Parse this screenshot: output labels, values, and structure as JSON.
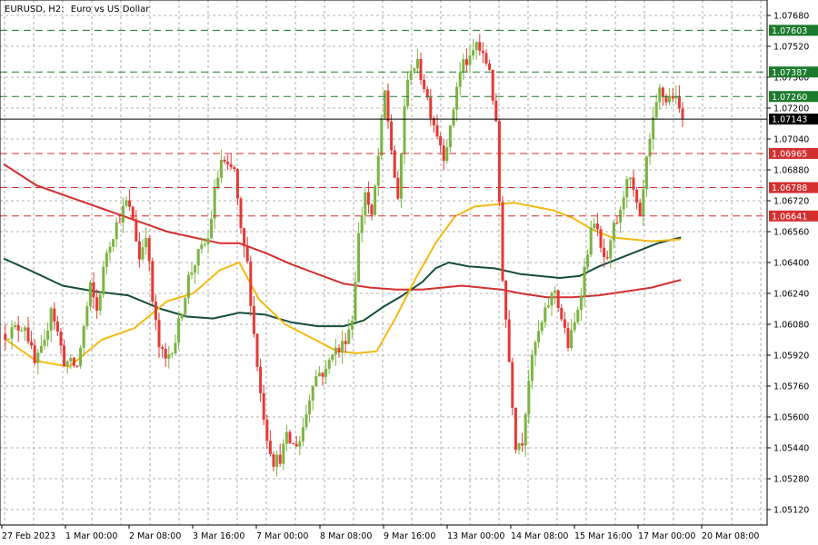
{
  "header": {
    "symbol": "EURUSD, H2:",
    "description": "Euro vs US Dollar"
  },
  "colors": {
    "bull": "#7cb342",
    "bear": "#e53935",
    "ma_fast": "#f5b914",
    "ma_mid": "#134e3a",
    "ma_slow": "#d32f2f",
    "level_green": "#1b7a2b",
    "level_red": "#d32f2f",
    "current": "#000000"
  },
  "chart_data": {
    "type": "candlestick",
    "ylim": [
      1.0504,
      1.0776
    ],
    "y_ticks": [
      "1.07680",
      "1.07520",
      "1.07360",
      "1.07200",
      "1.07040",
      "1.06880",
      "1.06720",
      "1.06560",
      "1.06400",
      "1.06240",
      "1.06080",
      "1.05920",
      "1.05760",
      "1.05600",
      "1.05440",
      "1.05280",
      "1.05120"
    ],
    "x_ticks": [
      "27 Feb 2023",
      "1 Mar 00:00",
      "2 Mar 08:00",
      "3 Mar 16:00",
      "7 Mar 00:00",
      "8 Mar 08:00",
      "9 Mar 16:00",
      "13 Mar 00:00",
      "14 Mar 08:00",
      "15 Mar 16:00",
      "17 Mar 00:00",
      "20 Mar 08:00"
    ],
    "current_price": {
      "label": "1.07143",
      "value": 1.07143
    },
    "levels": [
      {
        "label": "1.07603",
        "value": 1.07603,
        "kind": "resistance"
      },
      {
        "label": "1.07387",
        "value": 1.07387,
        "kind": "resistance"
      },
      {
        "label": "1.07260",
        "value": 1.0726,
        "kind": "resistance"
      },
      {
        "label": "1.06965",
        "value": 1.06965,
        "kind": "support"
      },
      {
        "label": "1.06788",
        "value": 1.06788,
        "kind": "support"
      },
      {
        "label": "1.06641",
        "value": 1.06641,
        "kind": "support"
      }
    ],
    "path": [
      [
        0,
        1.0603
      ],
      [
        6,
        1.0608
      ],
      [
        9,
        1.0587
      ],
      [
        12,
        1.0597
      ],
      [
        14,
        1.0618
      ],
      [
        18,
        1.0589
      ],
      [
        22,
        1.0586
      ],
      [
        26,
        1.0627
      ],
      [
        28,
        1.0615
      ],
      [
        31,
        1.0646
      ],
      [
        34,
        1.066
      ],
      [
        37,
        1.0671
      ],
      [
        39,
        1.0663
      ],
      [
        41,
        1.0642
      ],
      [
        43,
        1.0656
      ],
      [
        45,
        1.062
      ],
      [
        47,
        1.0596
      ],
      [
        49,
        1.0589
      ],
      [
        52,
        1.06
      ],
      [
        56,
        1.0632
      ],
      [
        59,
        1.0644
      ],
      [
        62,
        1.0652
      ],
      [
        64,
        1.0676
      ],
      [
        66,
        1.0693
      ],
      [
        68,
        1.0688
      ],
      [
        70,
        1.0688
      ],
      [
        72,
        1.0655
      ],
      [
        74,
        1.0639
      ],
      [
        76,
        1.0603
      ],
      [
        78,
        1.0572
      ],
      [
        80,
        1.055
      ],
      [
        82,
        1.0537
      ],
      [
        84,
        1.0539
      ],
      [
        86,
        1.0549
      ],
      [
        88,
        1.0545
      ],
      [
        90,
        1.0548
      ],
      [
        92,
        1.0562
      ],
      [
        94,
        1.0579
      ],
      [
        96,
        1.0583
      ],
      [
        98,
        1.0583
      ],
      [
        100,
        1.0595
      ],
      [
        102,
        1.0594
      ],
      [
        104,
        1.0601
      ],
      [
        106,
        1.0611
      ],
      [
        108,
        1.0654
      ],
      [
        110,
        1.0677
      ],
      [
        112,
        1.0662
      ],
      [
        114,
        1.0695
      ],
      [
        116,
        1.0728
      ],
      [
        118,
        1.0699
      ],
      [
        120,
        1.067
      ],
      [
        122,
        1.0722
      ],
      [
        124,
        1.0742
      ],
      [
        126,
        1.0742
      ],
      [
        128,
        1.0732
      ],
      [
        130,
        1.0718
      ],
      [
        132,
        1.0707
      ],
      [
        134,
        1.0696
      ],
      [
        136,
        1.0708
      ],
      [
        138,
        1.0732
      ],
      [
        140,
        1.0744
      ],
      [
        142,
        1.0744
      ],
      [
        144,
        1.0754
      ],
      [
        146,
        1.0746
      ],
      [
        148,
        1.0741
      ],
      [
        150,
        1.071
      ],
      [
        152,
        1.0633
      ],
      [
        154,
        1.0589
      ],
      [
        156,
        1.0546
      ],
      [
        158,
        1.0548
      ],
      [
        160,
        1.058
      ],
      [
        162,
        1.0598
      ],
      [
        164,
        1.0608
      ],
      [
        166,
        1.0619
      ],
      [
        168,
        1.0626
      ],
      [
        170,
        1.0611
      ],
      [
        172,
        1.0597
      ],
      [
        174,
        1.0608
      ],
      [
        176,
        1.0626
      ],
      [
        178,
        1.0647
      ],
      [
        180,
        1.0663
      ],
      [
        182,
        1.0646
      ],
      [
        184,
        1.0639
      ],
      [
        186,
        1.0658
      ],
      [
        188,
        1.0665
      ],
      [
        190,
        1.0686
      ],
      [
        192,
        1.0676
      ],
      [
        194,
        1.0661
      ],
      [
        196,
        1.0692
      ],
      [
        198,
        1.0712
      ],
      [
        200,
        1.0729
      ],
      [
        202,
        1.0724
      ],
      [
        204,
        1.0727
      ],
      [
        206,
        1.0719
      ],
      [
        207,
        1.0718
      ]
    ],
    "bars": 208,
    "ma_fast": [
      [
        0,
        1.0601
      ],
      [
        10,
        1.0589
      ],
      [
        20,
        1.0586
      ],
      [
        30,
        1.06
      ],
      [
        40,
        1.0606
      ],
      [
        50,
        1.062
      ],
      [
        58,
        1.0624
      ],
      [
        66,
        1.0636
      ],
      [
        72,
        1.064
      ],
      [
        78,
        1.0621
      ],
      [
        86,
        1.0608
      ],
      [
        94,
        1.0601
      ],
      [
        102,
        1.0594
      ],
      [
        108,
        1.0593
      ],
      [
        114,
        1.0594
      ],
      [
        120,
        1.0612
      ],
      [
        126,
        1.0632
      ],
      [
        132,
        1.065
      ],
      [
        138,
        1.0664
      ],
      [
        144,
        1.0669
      ],
      [
        150,
        1.067
      ],
      [
        156,
        1.0671
      ],
      [
        162,
        1.0669
      ],
      [
        168,
        1.0667
      ],
      [
        174,
        1.0663
      ],
      [
        180,
        1.0657
      ],
      [
        186,
        1.0653
      ],
      [
        192,
        1.0652
      ],
      [
        198,
        1.0651
      ],
      [
        207,
        1.0652
      ]
    ],
    "ma_mid": [
      [
        0,
        1.0642
      ],
      [
        8,
        1.0636
      ],
      [
        18,
        1.0628
      ],
      [
        28,
        1.0625
      ],
      [
        38,
        1.0623
      ],
      [
        48,
        1.0616
      ],
      [
        56,
        1.0612
      ],
      [
        64,
        1.0611
      ],
      [
        72,
        1.0614
      ],
      [
        80,
        1.0613
      ],
      [
        88,
        1.0609
      ],
      [
        96,
        1.0607
      ],
      [
        104,
        1.0607
      ],
      [
        110,
        1.061
      ],
      [
        116,
        1.0617
      ],
      [
        122,
        1.0623
      ],
      [
        128,
        1.063
      ],
      [
        132,
        1.0637
      ],
      [
        136,
        1.064
      ],
      [
        142,
        1.0638
      ],
      [
        150,
        1.0637
      ],
      [
        158,
        1.0634
      ],
      [
        164,
        1.0633
      ],
      [
        170,
        1.0632
      ],
      [
        176,
        1.0633
      ],
      [
        182,
        1.0638
      ],
      [
        188,
        1.0642
      ],
      [
        194,
        1.0646
      ],
      [
        200,
        1.065
      ],
      [
        207,
        1.0653
      ]
    ],
    "ma_slow": [
      [
        0,
        1.0691
      ],
      [
        10,
        1.068
      ],
      [
        20,
        1.0674
      ],
      [
        30,
        1.0668
      ],
      [
        40,
        1.0662
      ],
      [
        50,
        1.0656
      ],
      [
        58,
        1.0653
      ],
      [
        66,
        1.065
      ],
      [
        72,
        1.065
      ],
      [
        80,
        1.0645
      ],
      [
        88,
        1.0639
      ],
      [
        96,
        1.0634
      ],
      [
        104,
        1.0629
      ],
      [
        112,
        1.0627
      ],
      [
        120,
        1.0626
      ],
      [
        128,
        1.0626
      ],
      [
        134,
        1.0627
      ],
      [
        140,
        1.0628
      ],
      [
        146,
        1.0627
      ],
      [
        152,
        1.0626
      ],
      [
        158,
        1.0624
      ],
      [
        166,
        1.0622
      ],
      [
        174,
        1.0622
      ],
      [
        182,
        1.0623
      ],
      [
        190,
        1.0625
      ],
      [
        198,
        1.0627
      ],
      [
        207,
        1.0631
      ]
    ]
  }
}
